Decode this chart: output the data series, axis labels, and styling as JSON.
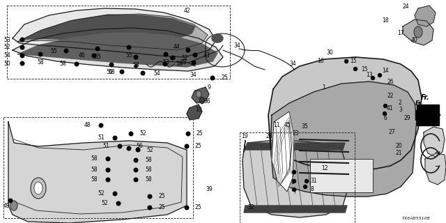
{
  "diagram_code": "TX6AB5510B",
  "background_color": "#ffffff",
  "line_color": "#1a1a1a",
  "fig_width": 6.4,
  "fig_height": 3.2,
  "dpi": 100
}
